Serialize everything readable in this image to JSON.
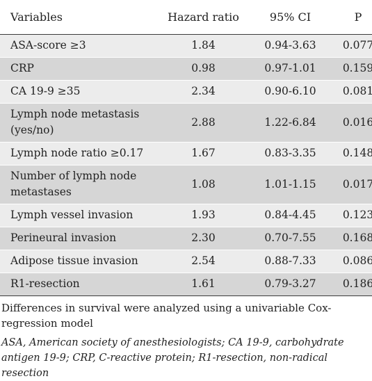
{
  "table": {
    "headers": {
      "variables": "Variables",
      "hazard_ratio": "Hazard ratio",
      "ci": "95% CI",
      "p": "P"
    },
    "rows": [
      {
        "variable": "ASA-score ≥3",
        "hr": "1.84",
        "ci": "0.94-3.63",
        "p": "0.077"
      },
      {
        "variable": "CRP",
        "hr": "0.98",
        "ci": "0.97-1.01",
        "p": "0.159"
      },
      {
        "variable": "CA 19-9 ≥35",
        "hr": "2.34",
        "ci": "0.90-6.10",
        "p": "0.081"
      },
      {
        "variable": "Lymph node metastasis (yes/no)",
        "hr": "2.88",
        "ci": "1.22-6.84",
        "p": "0.016"
      },
      {
        "variable": "Lymph node ratio ≥0.17",
        "hr": "1.67",
        "ci": "0.83-3.35",
        "p": "0.148"
      },
      {
        "variable": "Number of lymph node metastases",
        "hr": "1.08",
        "ci": "1.01-1.15",
        "p": "0.017"
      },
      {
        "variable": "Lymph vessel invasion",
        "hr": "1.93",
        "ci": "0.84-4.45",
        "p": "0.123"
      },
      {
        "variable": "Perineural invasion",
        "hr": "2.30",
        "ci": "0.70-7.55",
        "p": "0.168"
      },
      {
        "variable": "Adipose tissue invasion",
        "hr": "2.54",
        "ci": "0.88-7.33",
        "p": "0.086"
      },
      {
        "variable": "R1-resection",
        "hr": "1.61",
        "ci": "0.79-3.27",
        "p": "0.186"
      }
    ]
  },
  "footnote": "Differences in survival were analyzed using a univariable Cox-regression model",
  "abbreviations": "ASA, American society of anesthesiologists; CA 19-9, carbohydrate antigen 19-9; CRP, C-reactive protein; R1-resection, non-radical resection"
}
